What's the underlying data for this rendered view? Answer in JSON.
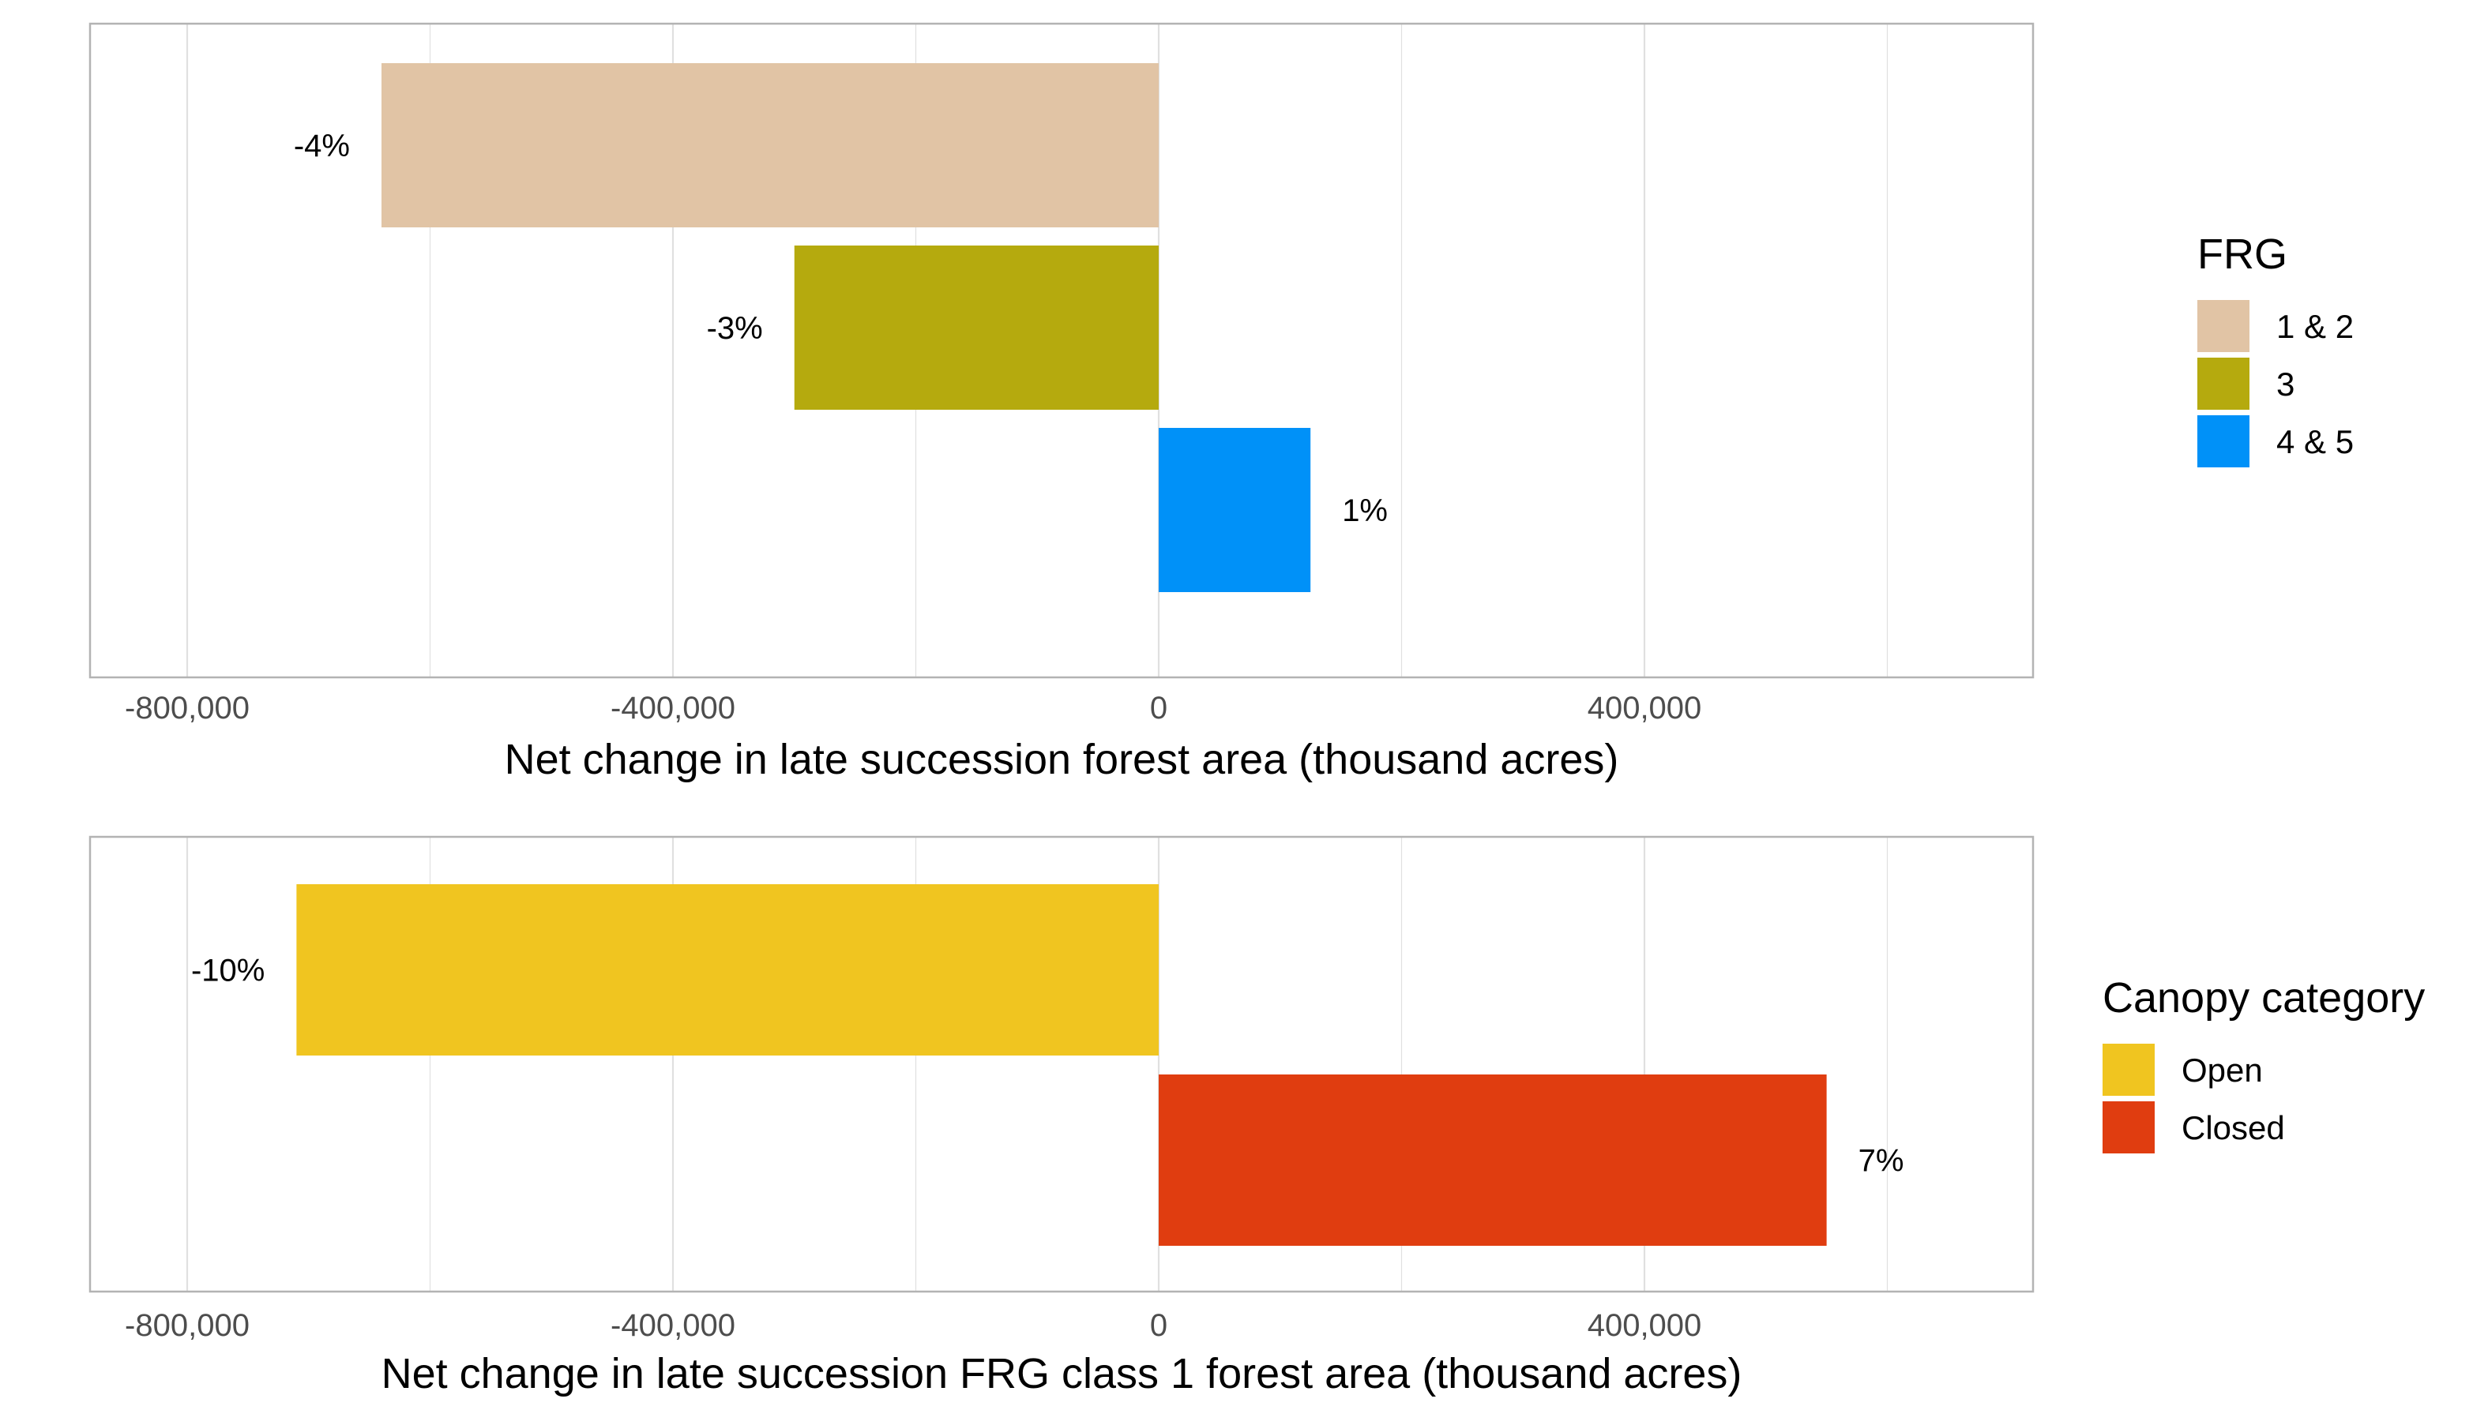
{
  "chart_data": [
    {
      "type": "bar",
      "orientation": "horizontal",
      "categories": [
        "1 & 2",
        "3",
        "4 & 5"
      ],
      "values": [
        -640000,
        -300000,
        125000
      ],
      "bar_labels": [
        "-4%",
        "-3%",
        "1%"
      ],
      "colors": [
        "#E1C4A5",
        "#B5AA0E",
        "#0091F8"
      ],
      "xlabel": "Net change in late succession forest area (thousand acres)",
      "xlim": [
        -880000,
        720000
      ],
      "xticks": [
        -800000,
        -400000,
        0,
        400000
      ],
      "xtick_labels": [
        "-800,000",
        "-400,000",
        "0",
        "400,000"
      ],
      "legend": {
        "title": "FRG",
        "items": [
          "1 & 2",
          "3",
          "4 & 5"
        ],
        "position": "right"
      },
      "grid": true
    },
    {
      "type": "bar",
      "orientation": "horizontal",
      "categories": [
        "Open",
        "Closed"
      ],
      "values": [
        -710000,
        550000
      ],
      "bar_labels": [
        "-10%",
        "7%"
      ],
      "colors": [
        "#F0C520",
        "#E03D10"
      ],
      "xlabel": "Net change in late succession FRG class 1 forest area (thousand acres)",
      "xlim": [
        -880000,
        720000
      ],
      "xticks": [
        -800000,
        -400000,
        0,
        400000
      ],
      "xtick_labels": [
        "-800,000",
        "-400,000",
        "0",
        "400,000"
      ],
      "legend": {
        "title": "Canopy category",
        "items": [
          "Open",
          "Closed"
        ],
        "position": "right"
      },
      "grid": true
    }
  ],
  "colors": {
    "panel_border": "#b3b3b3",
    "gridline": "#e0e0e0",
    "tick_text": "#4d4d4d"
  }
}
